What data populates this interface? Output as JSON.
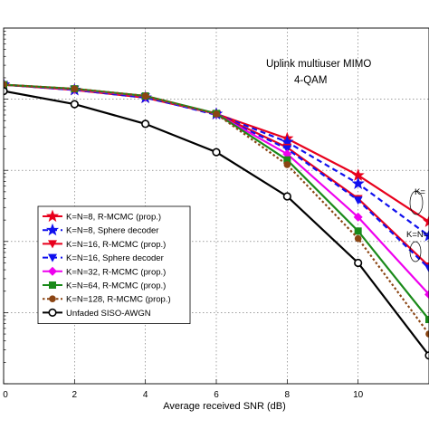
{
  "chart_data": {
    "type": "line",
    "title": "",
    "annotation": [
      "Uplink multiuser MIMO",
      "4-QAM"
    ],
    "xlabel": "Average received SNR (dB)",
    "ylabel": "",
    "xlim": [
      0,
      12
    ],
    "ylim": [
      1e-05,
      1
    ],
    "yscale": "log",
    "grid": true,
    "legend_position": "lower-left",
    "x_ticks": [
      "0",
      "2",
      "4",
      "6",
      "8",
      "10"
    ],
    "partial_labels": [
      "K=",
      "K=N="
    ],
    "x": [
      0,
      2,
      4,
      6,
      8,
      10,
      12
    ],
    "series": [
      {
        "name": "K=N=8, R-MCMC (prop.)",
        "color": "#e8001c",
        "marker": "star",
        "dash": "solid",
        "values": [
          0.16,
          0.135,
          0.105,
          0.062,
          0.028,
          0.0085,
          0.0019
        ]
      },
      {
        "name": "K=N=8, Sphere decoder",
        "color": "#1010ee",
        "marker": "star",
        "dash": "dashed",
        "values": [
          0.16,
          0.135,
          0.105,
          0.062,
          0.025,
          0.0065,
          0.0012
        ]
      },
      {
        "name": "K=N=16, R-MCMC (prop.)",
        "color": "#e8001c",
        "marker": "triangle",
        "dash": "solid",
        "values": [
          0.16,
          0.138,
          0.108,
          0.062,
          0.021,
          0.004,
          0.00045
        ]
      },
      {
        "name": "K=N=16, Sphere decoder",
        "color": "#1010ee",
        "marker": "triangle",
        "dash": "dashed",
        "values": [
          0.16,
          0.138,
          0.108,
          0.06,
          0.02,
          0.0038,
          0.00042
        ]
      },
      {
        "name": "K=N=32, R-MCMC (prop.)",
        "color": "#ee00ee",
        "marker": "diamond",
        "dash": "solid",
        "values": [
          0.16,
          0.138,
          0.11,
          0.062,
          0.017,
          0.0022,
          0.00018
        ]
      },
      {
        "name": "K=N=64, R-MCMC (prop.)",
        "color": "#1a8a1a",
        "marker": "square",
        "dash": "solid",
        "values": [
          0.16,
          0.14,
          0.111,
          0.063,
          0.014,
          0.0014,
          8e-05
        ]
      },
      {
        "name": "K=N=128, R-MCMC (prop.)",
        "color": "#8b4513",
        "marker": "circle",
        "dash": "dotted",
        "values": [
          0.16,
          0.14,
          0.111,
          0.062,
          0.012,
          0.0011,
          5e-05
        ]
      },
      {
        "name": "Unfaded SISO-AWGN",
        "color": "#000000",
        "marker": "circle-open",
        "dash": "solid",
        "values": [
          0.13,
          0.085,
          0.045,
          0.018,
          0.0043,
          0.0005,
          2.5e-05
        ]
      }
    ]
  }
}
